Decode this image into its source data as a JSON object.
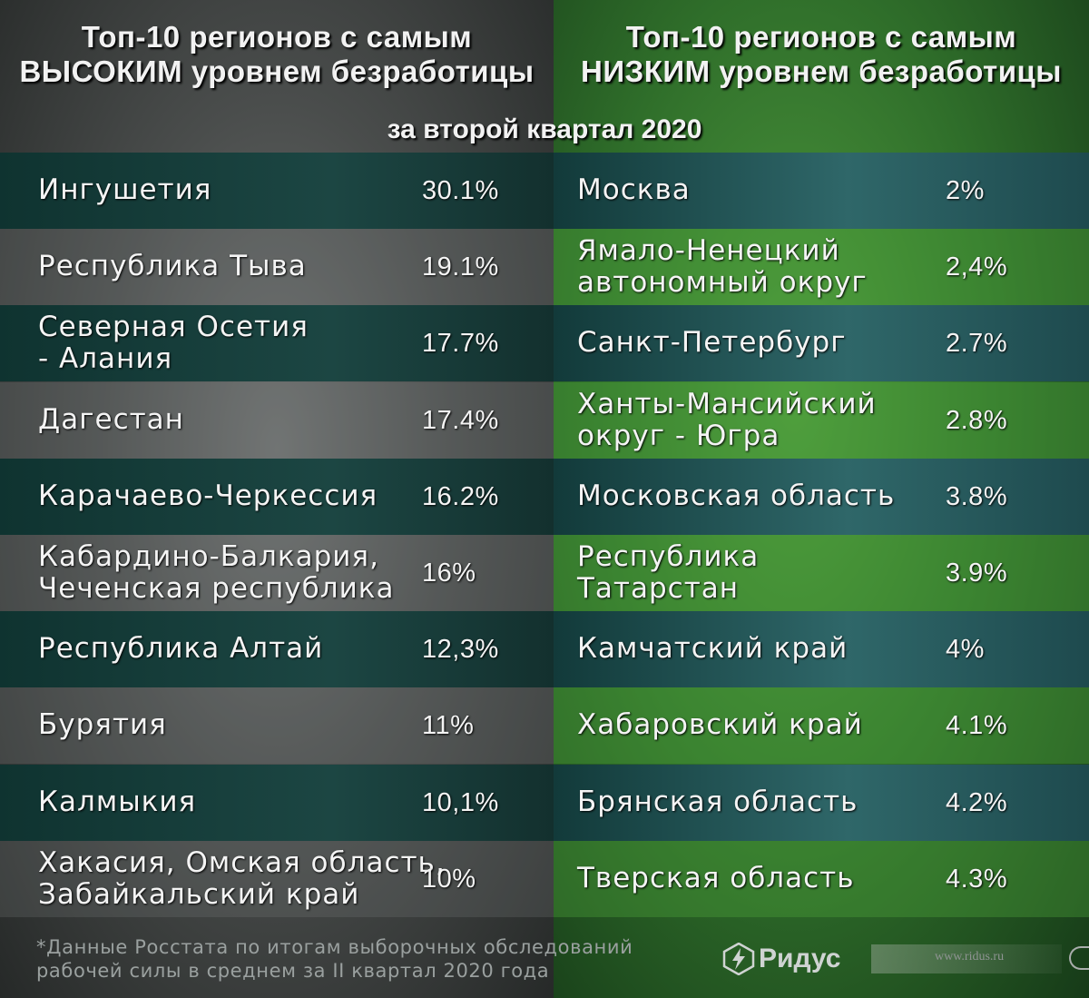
{
  "header": {
    "left_line1": "Топ-10 регионов с самым",
    "left_line2": "ВЫСОКИМ уровнем безработицы",
    "right_line1": "Топ-10 регионов с самым",
    "right_line2": "НИЗКИМ уровнем безработицы",
    "subtitle": "за второй квартал 2020"
  },
  "chart_data": {
    "type": "table",
    "columns": [
      "Топ-10 регионов с самым ВЫСОКИМ уровнем безработицы",
      "Топ-10 регионов с самым НИЗКИМ уровнем безработицы"
    ],
    "high": [
      {
        "line1": "Ингушетия",
        "line2": "",
        "value": "30.1%"
      },
      {
        "line1": "Республика Тыва",
        "line2": "",
        "value": "19.1%"
      },
      {
        "line1": "Северная Осетия",
        "line2": "- Алания",
        "value": "17.7%"
      },
      {
        "line1": "Дагестан",
        "line2": "",
        "value": "17.4%"
      },
      {
        "line1": "Карачаево-Черкессия",
        "line2": "",
        "value": "16.2%"
      },
      {
        "line1": "Кабардино-Балкария,",
        "line2": "Чеченская республика",
        "value": "16%"
      },
      {
        "line1": "Республика Алтай",
        "line2": "",
        "value": "12,3%"
      },
      {
        "line1": "Бурятия",
        "line2": "",
        "value": "11%"
      },
      {
        "line1": "Калмыкия",
        "line2": "",
        "value": "10,1%"
      },
      {
        "line1": "Хакасия, Омская область,",
        "line2": "Забайкальский край",
        "value": "10%"
      }
    ],
    "low": [
      {
        "line1": "Москва",
        "line2": "",
        "value": "2%"
      },
      {
        "line1": "Ямало-Ненецкий",
        "line2": "автономный округ",
        "value": "2,4%"
      },
      {
        "line1": "Санкт-Петербург",
        "line2": "",
        "value": "2.7%"
      },
      {
        "line1": "Ханты-Мансийский",
        "line2": "округ - Югра",
        "value": "2.8%"
      },
      {
        "line1": "Московская область",
        "line2": "",
        "value": "3.8%"
      },
      {
        "line1": "Республика",
        "line2": "Татарстан",
        "value": "3.9%"
      },
      {
        "line1": "Камчатский край",
        "line2": "",
        "value": "4%"
      },
      {
        "line1": "Хабаровский край",
        "line2": "",
        "value": "4.1%"
      },
      {
        "line1": "Брянская область",
        "line2": "",
        "value": "4.2%"
      },
      {
        "line1": "Тверская область",
        "line2": "",
        "value": "4.3%"
      }
    ]
  },
  "footnote": {
    "line1": "*Данные Росстата по итогам выборочных обследований",
    "line2": "рабочей силы в среднем за II квартал 2020 года"
  },
  "logo": {
    "icon": "ridus-logo-icon",
    "text": "Ридус",
    "site": "www.ridus.ru"
  }
}
